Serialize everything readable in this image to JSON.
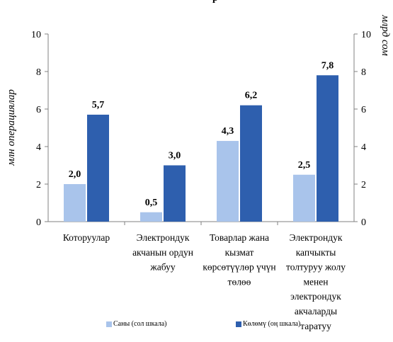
{
  "chart_data": {
    "type": "bar",
    "title_fragment": "р",
    "categories": [
      [
        "Которуулар"
      ],
      [
        "Электрондук",
        "акчанын ордун",
        "жабуу"
      ],
      [
        "Товарлар жана",
        "кызмат",
        "көрсөтүүлөр үчүн",
        "төлөө"
      ],
      [
        "Электрондук",
        "капчыкты",
        "толтуруу жолу",
        "менен",
        "электрондук",
        "акчаларды",
        "таратуу"
      ]
    ],
    "series": [
      {
        "name": "Саны (сол шкала)",
        "axis": "left",
        "values": [
          2.0,
          0.5,
          4.3,
          2.5
        ],
        "labels": [
          "2,0",
          "0,5",
          "4,3",
          "2,5"
        ],
        "color": "#a9c4eb"
      },
      {
        "name": "Көлөмү (оң шкала)",
        "axis": "right",
        "values": [
          5.7,
          3.0,
          6.2,
          7.8
        ],
        "labels": [
          "5,7",
          "3,0",
          "6,2",
          "7,8"
        ],
        "color": "#2e5fae"
      }
    ],
    "ylabel_left": "млн операциялар",
    "ylabel_right": "млрд сом",
    "ylim_left": [
      0,
      10
    ],
    "ylim_right": [
      0,
      10
    ],
    "yticks": [
      "0",
      "2",
      "4",
      "6",
      "8",
      "10"
    ],
    "grid": false,
    "legend_position": "bottom"
  }
}
